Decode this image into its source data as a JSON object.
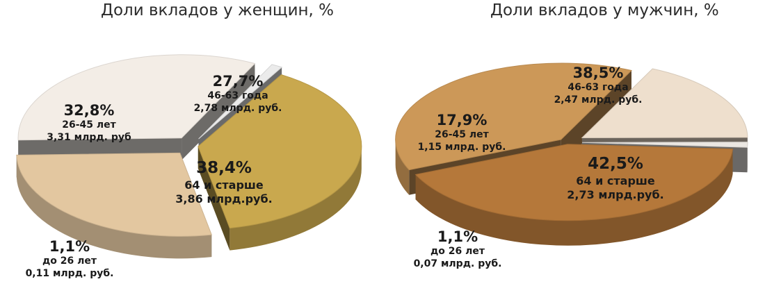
{
  "chart_data": [
    {
      "type": "pie",
      "title": "Доли вкладов у женщин, %",
      "slices": [
        {
          "label": "64 и старше",
          "percent": 38.4,
          "percent_label": "38,4%",
          "amount_label": "3,86 млрд.руб.",
          "color": "#c9a84e"
        },
        {
          "label": "46-63 года",
          "percent": 27.7,
          "percent_label": "27,7%",
          "amount_label": "2,78 млрд. руб.",
          "color": "#e3c7a0"
        },
        {
          "label": "26-45 лет",
          "percent": 32.8,
          "percent_label": "32,8%",
          "amount_label": "3,31 млрд. руб",
          "color": "#f3ede6"
        },
        {
          "label": "до 26 лет",
          "percent": 1.1,
          "percent_label": "1,1%",
          "amount_label": "0,11 млрд. руб.",
          "color": "#ebebeb"
        }
      ]
    },
    {
      "type": "pie",
      "title": "Доли вкладов у мужчин, %",
      "slices": [
        {
          "label": "64 и старше",
          "percent": 42.5,
          "percent_label": "42,5%",
          "amount_label": "2,73 млрд.руб.",
          "color": "#b5783a"
        },
        {
          "label": "46-63 года",
          "percent": 38.5,
          "percent_label": "38,5%",
          "amount_label": "2,47 млрд. руб.",
          "color": "#cc9858"
        },
        {
          "label": "26-45 лет",
          "percent": 17.9,
          "percent_label": "17,9%",
          "amount_label": "1,15 млрд. руб.",
          "color": "#eedfcd"
        },
        {
          "label": "до 26 лет",
          "percent": 1.1,
          "percent_label": "1,1%",
          "amount_label": "0,07 млрд. руб.",
          "color": "#ebe7e2"
        }
      ]
    }
  ]
}
